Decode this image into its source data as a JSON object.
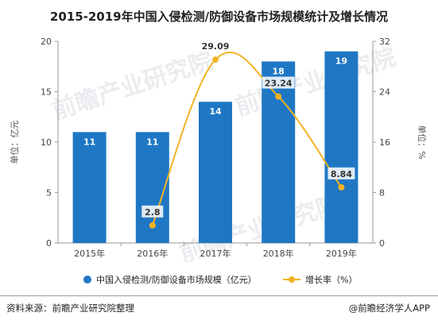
{
  "title": "2015-2019年中国入侵检测/防御设备市场规模统计及增长情况",
  "source": "资料来源：前瞻产业研究院整理",
  "credit": "@前瞻经济学人APP",
  "watermark": "前瞻产业研究院",
  "colors": {
    "bar": "#1f77c4",
    "line": "#f0b323",
    "axis": "#9a9a9a"
  },
  "chart_data": {
    "type": "bar+line",
    "categories": [
      "2015年",
      "2016年",
      "2017年",
      "2018年",
      "2019年"
    ],
    "series": [
      {
        "name": "中国入侵检测/防御设备市场规模（亿元）",
        "type": "bar",
        "axis": "left",
        "values": [
          11,
          11,
          14,
          18,
          19
        ],
        "labels": [
          "11",
          "11",
          "14",
          "18",
          "19"
        ]
      },
      {
        "name": "增长率（%）",
        "type": "line",
        "axis": "right",
        "values": [
          null,
          2.8,
          29.09,
          23.24,
          8.84
        ],
        "labels": [
          "",
          "2.8",
          "29.09",
          "23.24",
          "8.84"
        ]
      }
    ],
    "ylabel_left": "单位：亿元",
    "ylabel_right": "单位：%",
    "ylim_left": [
      0,
      20
    ],
    "yticks_left": [
      "0",
      "5",
      "10",
      "15",
      "20"
    ],
    "ylim_right": [
      0,
      32
    ],
    "yticks_right": [
      "0",
      "8",
      "16",
      "24",
      "32"
    ],
    "grid": false,
    "legend": "bottom"
  }
}
